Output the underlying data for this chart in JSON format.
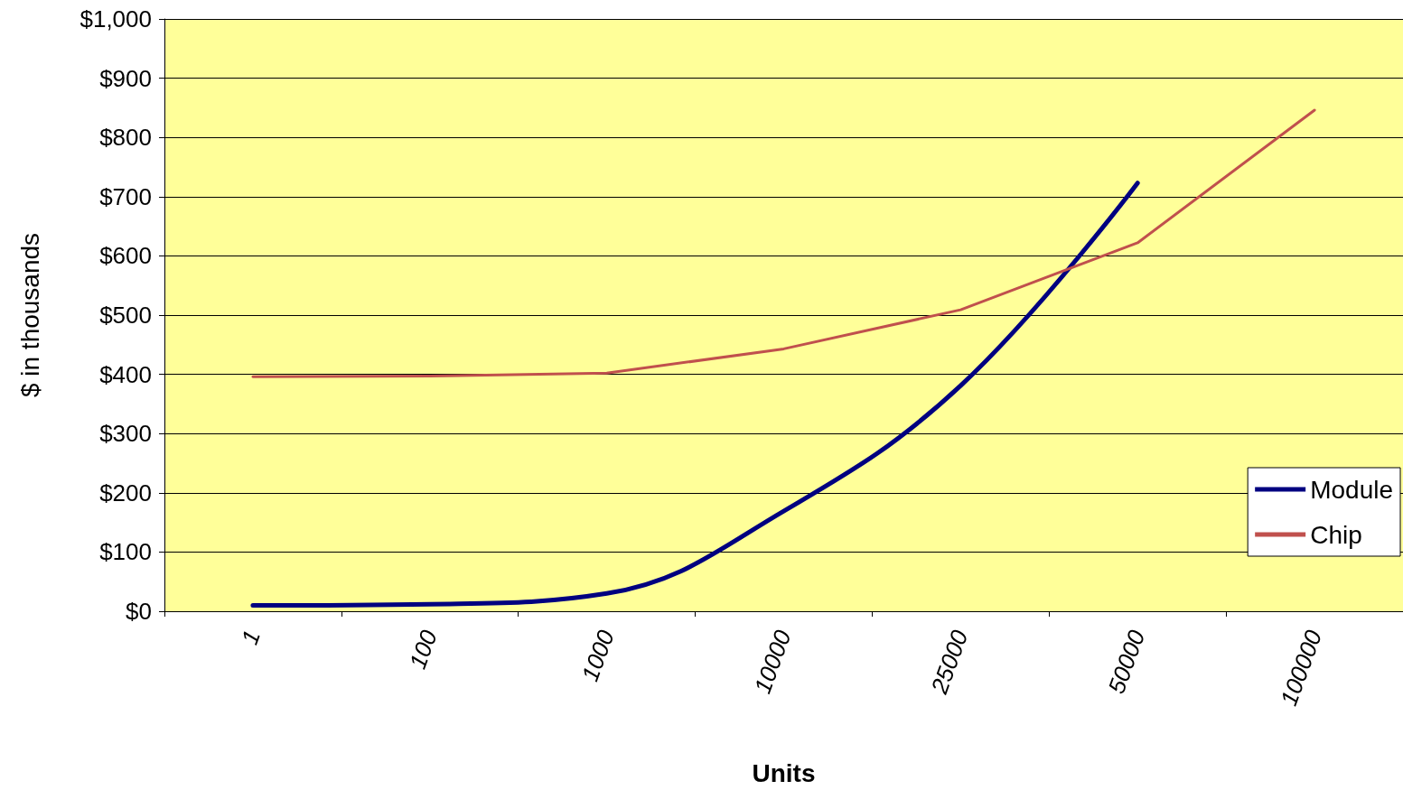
{
  "chart_data": {
    "type": "line",
    "xlabel": "Units",
    "ylabel": "$ in thousands",
    "categories": [
      "1",
      "100",
      "1000",
      "10000",
      "25000",
      "50000",
      "100000"
    ],
    "series": [
      {
        "name": "Module",
        "color": "#000080",
        "values": [
          10,
          12,
          30,
          169,
          381,
          723,
          null
        ]
      },
      {
        "name": "Chip",
        "color": "#c0504d",
        "values": [
          396,
          397,
          402,
          443,
          509,
          622,
          846
        ]
      }
    ],
    "ylim": [
      0,
      1000
    ],
    "yticks": [
      {
        "value": 0,
        "label": "$0"
      },
      {
        "value": 100,
        "label": "$100"
      },
      {
        "value": 200,
        "label": "$200"
      },
      {
        "value": 300,
        "label": "$300"
      },
      {
        "value": 400,
        "label": "$400"
      },
      {
        "value": 500,
        "label": "$500"
      },
      {
        "value": 600,
        "label": "$600"
      },
      {
        "value": 700,
        "label": "$700"
      },
      {
        "value": 800,
        "label": "$800"
      },
      {
        "value": 900,
        "label": "$900"
      },
      {
        "value": 1000,
        "label": "$1,000"
      }
    ],
    "grid": "y",
    "legend": "right",
    "marker": "none",
    "line_style": "solid"
  }
}
